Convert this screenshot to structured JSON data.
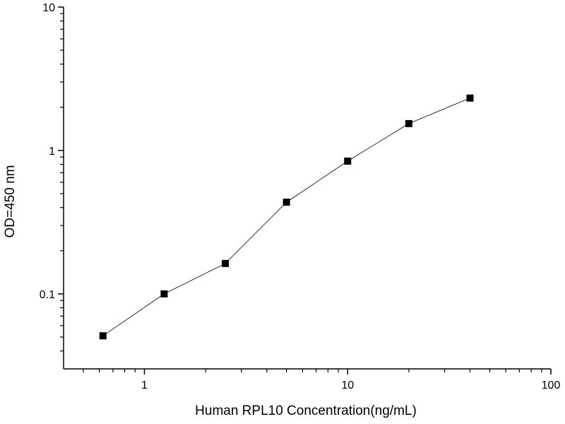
{
  "chart_data": {
    "type": "line",
    "x_label": "Human RPL10 Concentration(ng/mL)",
    "y_label": "OD=450 nm",
    "x": [
      0.625,
      1.25,
      2.5,
      5,
      10,
      20,
      40
    ],
    "series": [
      {
        "color": "#000000",
        "values": [
          0.051,
          0.1,
          0.163,
          0.436,
          0.843,
          1.54,
          2.32
        ]
      }
    ],
    "xlim": [
      0.4,
      100
    ],
    "ylim": [
      0.03,
      10
    ],
    "xticks": [
      1,
      10,
      100
    ],
    "yticks": [
      0.1,
      1,
      10
    ],
    "xminorticks": [
      0.5,
      0.6,
      0.7,
      0.8,
      0.9,
      2,
      3,
      4,
      5,
      6,
      7,
      8,
      9,
      20,
      30,
      40,
      50,
      60,
      70,
      80,
      90
    ],
    "yminorticks": [
      0.04,
      0.05,
      0.06,
      0.07,
      0.08,
      0.09,
      0.2,
      0.3,
      0.4,
      0.5,
      0.6,
      0.7,
      0.8,
      0.9,
      2,
      3,
      4,
      5,
      6,
      7,
      8,
      9
    ],
    "xscale": "log",
    "yscale": "log",
    "marker": "square"
  }
}
